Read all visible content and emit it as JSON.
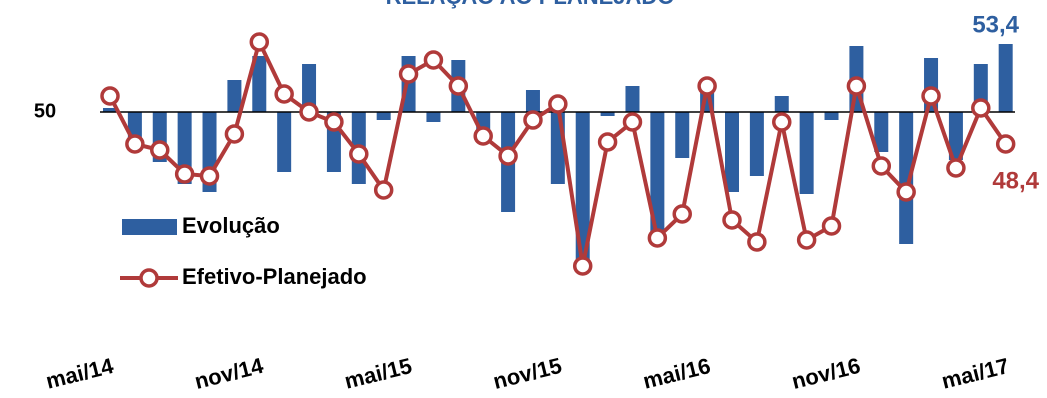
{
  "chart_data": {
    "type": "bar+line",
    "title": "RELAÇÃO AO PLANEJADO",
    "categories": [
      "mai/14",
      null,
      null,
      null,
      null,
      null,
      "nov/14",
      null,
      null,
      null,
      null,
      null,
      "mai/15",
      null,
      null,
      null,
      null,
      null,
      "nov/15",
      null,
      null,
      null,
      null,
      null,
      "mai/16",
      null,
      null,
      null,
      null,
      null,
      "nov/16",
      null,
      null,
      null,
      null,
      null,
      "mai/17"
    ],
    "series": [
      {
        "name": "Evolução",
        "type": "bar",
        "color": "#2e5fa0",
        "values": [
          50.2,
          48.6,
          47.5,
          46.4,
          46.0,
          51.6,
          52.8,
          47.0,
          52.4,
          47.0,
          46.4,
          49.6,
          52.8,
          49.5,
          52.6,
          49.1,
          45.0,
          51.1,
          46.4,
          42.4,
          49.8,
          51.3,
          44.0,
          47.7,
          51.2,
          46.0,
          46.8,
          50.8,
          45.9,
          49.6,
          53.3,
          48.0,
          43.4,
          52.7,
          47.6,
          52.4,
          53.4
        ],
        "value_labels": [
          null,
          null,
          null,
          null,
          null,
          null,
          null,
          null,
          null,
          null,
          null,
          null,
          null,
          null,
          null,
          null,
          null,
          null,
          null,
          null,
          null,
          null,
          null,
          null,
          null,
          null,
          null,
          null,
          null,
          null,
          null,
          null,
          null,
          null,
          null,
          null,
          "53,4"
        ]
      },
      {
        "name": "Efetivo-Planejado",
        "type": "line",
        "color": "#b03a3a",
        "values": [
          50.8,
          48.4,
          48.1,
          46.9,
          46.8,
          48.9,
          53.5,
          50.9,
          50.0,
          49.5,
          47.9,
          46.1,
          51.9,
          52.6,
          51.3,
          48.8,
          47.8,
          49.6,
          50.4,
          42.3,
          48.5,
          49.5,
          43.7,
          44.9,
          51.3,
          44.6,
          43.5,
          49.5,
          43.6,
          44.3,
          51.3,
          47.3,
          46.0,
          50.8,
          47.2,
          50.2,
          48.4
        ],
        "value_labels": [
          null,
          null,
          null,
          null,
          null,
          null,
          null,
          null,
          null,
          null,
          null,
          null,
          null,
          null,
          null,
          null,
          null,
          null,
          null,
          null,
          null,
          null,
          null,
          null,
          null,
          null,
          null,
          null,
          null,
          null,
          null,
          null,
          null,
          null,
          null,
          null,
          "48,4"
        ]
      }
    ],
    "ylim": [
      41,
      55
    ],
    "yticks": [
      50
    ],
    "legend": "left"
  }
}
